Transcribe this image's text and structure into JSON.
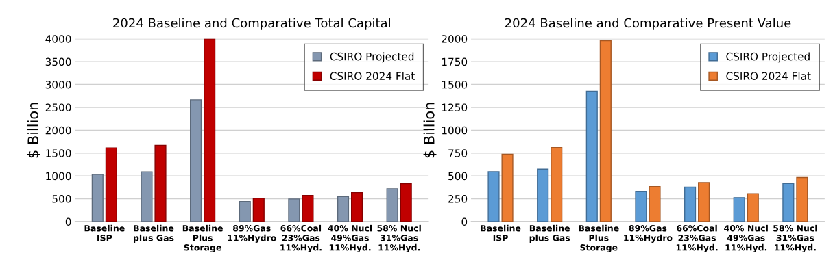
{
  "chart_data": [
    {
      "type": "bar",
      "title": "2024 Baseline and Comparative Total Capital",
      "ylabel": "$ Billion",
      "categories": [
        "Baseline\nISP",
        "Baseline\nplus Gas",
        "Baseline\nPlus\nStorage",
        "89%Gas\n11%Hydro",
        "66%Coal\n23%Gas\n11%Hyd.",
        "40% Nucl\n49%Gas\n11%Hyd.",
        "58% Nucl\n31%Gas\n11%Hyd."
      ],
      "series": [
        {
          "name": "CSIRO Projected",
          "color": "#8497b0",
          "values": [
            1030,
            1090,
            2665,
            440,
            495,
            550,
            720
          ]
        },
        {
          "name": "CSIRO 2024 Flat",
          "color": "#c00000",
          "values": [
            1615,
            1670,
            4000,
            510,
            575,
            635,
            830
          ]
        }
      ],
      "ylim": [
        0,
        4000
      ],
      "yticks": [
        0,
        500,
        1000,
        1500,
        2000,
        2500,
        3000,
        3500,
        4000
      ],
      "grid": "y",
      "legend": "top right"
    },
    {
      "type": "bar",
      "title": "2024 Baseline and Comparative Present Value",
      "ylabel": "$ Billion",
      "categories": [
        "Baseline\nISP",
        "Baseline\nplus Gas",
        "Baseline\nPlus\nStorage",
        "89%Gas\n11%Hydro",
        "66%Coal\n23%Gas\n11%Hyd.",
        "40% Nucl\n49%Gas\n11%Hyd.",
        "58% Nucl\n31%Gas\n11%Hyd."
      ],
      "series": [
        {
          "name": "CSIRO Projected",
          "color": "#5b9bd5",
          "values": [
            547,
            574,
            1426,
            332,
            378,
            263,
            417
          ]
        },
        {
          "name": "CSIRO 2024 Flat",
          "color": "#ed7d31",
          "values": [
            737,
            810,
            1979,
            384,
            426,
            305,
            483
          ]
        }
      ],
      "ylim": [
        0,
        2000
      ],
      "yticks": [
        0,
        250,
        500,
        750,
        1000,
        1250,
        1500,
        1750,
        2000
      ],
      "grid": "y",
      "legend": "top right"
    }
  ]
}
